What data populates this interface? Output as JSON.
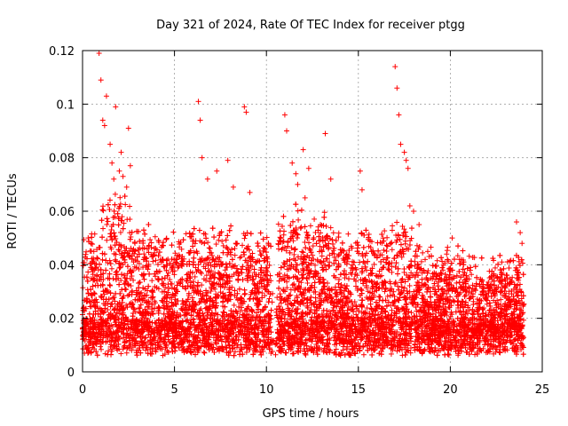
{
  "chart_data": {
    "type": "scatter",
    "title": "Day 321 of 2024, Rate Of TEC Index for receiver ptgg",
    "xlabel": "GPS time / hours",
    "ylabel": "ROTI / TECUs",
    "xlim": [
      0,
      25
    ],
    "ylim": [
      0,
      0.12
    ],
    "xticks": [
      "0",
      "5",
      "10",
      "15",
      "20",
      "25"
    ],
    "yticks": [
      "0",
      "0.02",
      "0.04",
      "0.06",
      "0.08",
      "0.1",
      "0.12"
    ],
    "grid": true,
    "marker": "plus",
    "color": "#ff0000",
    "series": [
      {
        "x": [
          0.9,
          1.0,
          1.1,
          1.2,
          1.3,
          1.5,
          1.6,
          1.7,
          1.8,
          2.0,
          2.1,
          2.2,
          2.4,
          2.5,
          2.6,
          6.3,
          6.4,
          6.5,
          6.8,
          7.3,
          7.9,
          8.2,
          8.8,
          8.9,
          9.1,
          11.0,
          11.1,
          11.4,
          11.6,
          11.7,
          12.0,
          12.1,
          12.3,
          13.2,
          13.5,
          15.1,
          15.2,
          17.0,
          17.1,
          17.2,
          17.3,
          17.5,
          17.6,
          17.7,
          17.8,
          18.0,
          18.3,
          19.8,
          20.1,
          20.5,
          23.6,
          23.8,
          23.9
        ],
        "y": [
          0.119,
          0.109,
          0.094,
          0.092,
          0.103,
          0.085,
          0.078,
          0.072,
          0.099,
          0.075,
          0.082,
          0.073,
          0.069,
          0.091,
          0.077,
          0.101,
          0.094,
          0.08,
          0.072,
          0.075,
          0.079,
          0.069,
          0.099,
          0.097,
          0.067,
          0.096,
          0.09,
          0.078,
          0.074,
          0.07,
          0.083,
          0.065,
          0.076,
          0.089,
          0.072,
          0.075,
          0.068,
          0.114,
          0.106,
          0.096,
          0.085,
          0.082,
          0.079,
          0.076,
          0.062,
          0.06,
          0.055,
          0.044,
          0.05,
          0.042,
          0.056,
          0.052,
          0.048
        ]
      }
    ]
  }
}
